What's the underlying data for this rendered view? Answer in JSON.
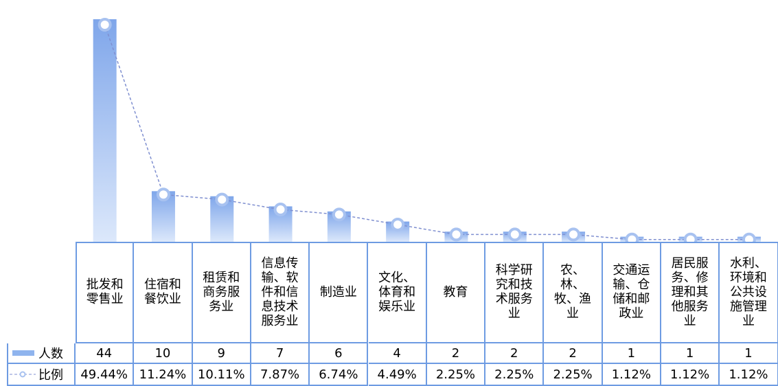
{
  "chart_data": {
    "type": "bar-line",
    "categories": [
      "批发和零售业",
      "住宿和餐饮业",
      "租赁和商务服务业",
      "信息传输、软件和信息技术服务业",
      "制造业",
      "文化、体育和娱乐业",
      "教育",
      "科学研究和技术服务业",
      "农、林、牧、渔业",
      "交通运输、仓储和邮政业",
      "居民服务、修理和其他服务业",
      "水利、环境和公共设施管理业"
    ],
    "series": [
      {
        "name": "人数",
        "type": "bar",
        "color": "#8fb4ee",
        "values": [
          44,
          10,
          9,
          7,
          6,
          4,
          2,
          2,
          2,
          1,
          1,
          1
        ]
      },
      {
        "name": "比例",
        "type": "line",
        "color": "#7f8fd0",
        "values": [
          49.44,
          11.24,
          10.11,
          7.87,
          6.74,
          4.49,
          2.25,
          2.25,
          2.25,
          1.12,
          1.12,
          1.12
        ],
        "value_labels": [
          "49.44%",
          "11.24%",
          "10.11%",
          "7.87%",
          "6.74%",
          "4.49%",
          "2.25%",
          "2.25%",
          "2.25%",
          "1.12%",
          "1.12%",
          "1.12%"
        ]
      }
    ],
    "legend": "data-table"
  }
}
